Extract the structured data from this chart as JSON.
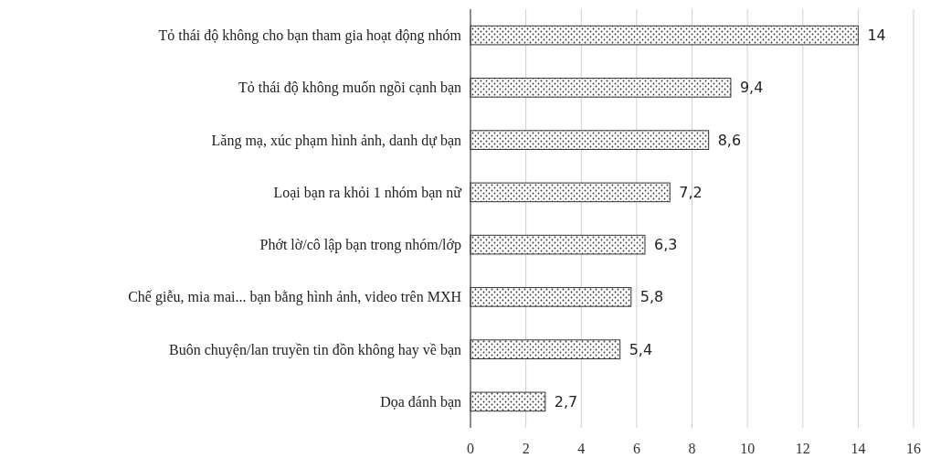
{
  "chart_data": {
    "type": "bar",
    "orientation": "horizontal",
    "categories": [
      "Tỏ thái độ không cho bạn tham gia hoạt động nhóm",
      "Tỏ thái độ không muốn ngồi cạnh bạn",
      "Lăng mạ, xúc phạm hình ảnh, danh dự bạn",
      "Loại bạn ra khỏi 1 nhóm bạn nữ",
      "Phớt lờ/cô lập bạn trong nhóm/lớp",
      "Chế giễu, mia mai... bạn bằng hình ảnh, video trên MXH",
      "Buôn chuyện/lan truyền tin đồn không hay về bạn",
      "Dọa đánh bạn"
    ],
    "values": [
      14,
      9.4,
      8.6,
      7.2,
      6.3,
      5.8,
      5.4,
      2.7
    ],
    "value_labels": [
      "14",
      "9,4",
      "8,6",
      "7,2",
      "6,3",
      "5,8",
      "5,4",
      "2,7"
    ],
    "color": "#333333",
    "xlim": [
      0,
      16
    ],
    "xticks": [
      0,
      2,
      4,
      6,
      8,
      10,
      12,
      14,
      16
    ],
    "grid": "x"
  }
}
